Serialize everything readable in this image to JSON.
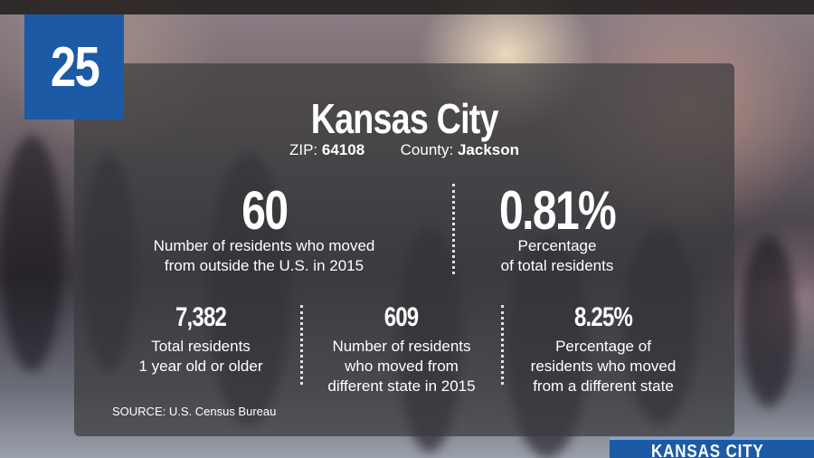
{
  "rank": "25",
  "city": "Kansas City",
  "zip": {
    "label": "ZIP:",
    "value": "64108"
  },
  "county": {
    "label": "County:",
    "value": "Jackson"
  },
  "primary_stats": [
    {
      "value": "60",
      "desc_line1": "Number of residents who moved",
      "desc_line2": "from outside the U.S. in 2015"
    },
    {
      "value": "0.81%",
      "desc_line1": "Percentage",
      "desc_line2": "of total residents"
    }
  ],
  "secondary_stats": [
    {
      "value": "7,382",
      "desc_line1": "Total residents",
      "desc_line2": "1 year old or older",
      "desc_line3": ""
    },
    {
      "value": "609",
      "desc_line1": "Number of residents",
      "desc_line2": "who moved from",
      "desc_line3": "different state in 2015"
    },
    {
      "value": "8.25%",
      "desc_line1": "Percentage of",
      "desc_line2": "residents who moved",
      "desc_line3": "from a different state"
    }
  ],
  "source": "SOURCE: U.S. Census Bureau",
  "brand": "KANSAS CITY",
  "colors": {
    "brand_blue": "#1c5aa6",
    "panel": "#3c3c3e"
  }
}
